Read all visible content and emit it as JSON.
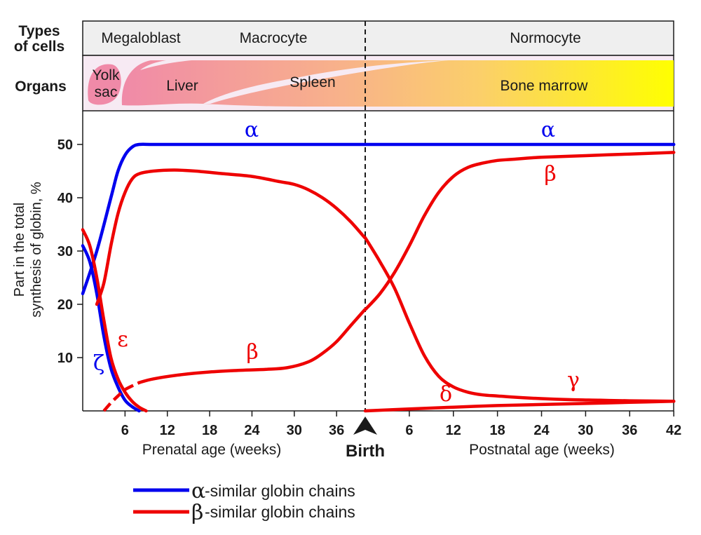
{
  "chart_data": {
    "type": "line",
    "row_labels": {
      "cell_types": "Types\nof cells",
      "organs": "Organs"
    },
    "cell_types": [
      "Megaloblast",
      "Macrocyte",
      "Normocyte"
    ],
    "organs": [
      "Yolk\nsac",
      "Liver",
      "Spleen",
      "Bone marrow"
    ],
    "ylabel": "Part in the total\nsynthesis of globin, %",
    "ylim": [
      0,
      55
    ],
    "yticks": [
      "10",
      "20",
      "30",
      "40",
      "50"
    ],
    "prenatal_ticks": [
      "6",
      "12",
      "18",
      "24",
      "30",
      "36"
    ],
    "postnatal_ticks": [
      "6",
      "12",
      "18",
      "24",
      "30",
      "36",
      "42"
    ],
    "prenatal_xlabel": "Prenatal age (weeks)",
    "postnatal_xlabel": "Postnatal age (weeks)",
    "birth_label": "Birth",
    "note": "x axis: prenatal weeks 0–40 (birth), then postnatal weeks 0–42",
    "series": [
      {
        "name": "α",
        "family": "alpha",
        "color": "#0000ee",
        "segments": [
          {
            "phase": "prenatal",
            "x": [
              0,
              2,
              4,
              5,
              6,
              7,
              8,
              10,
              15,
              20,
              30,
              40
            ],
            "y": [
              22,
              30,
              40,
              45,
              48,
              49.5,
              50,
              50,
              50,
              50,
              50,
              50
            ]
          },
          {
            "phase": "postnatal",
            "x": [
              0,
              10,
              20,
              30,
              42
            ],
            "y": [
              50,
              50,
              50,
              50,
              50
            ]
          }
        ]
      },
      {
        "name": "ζ",
        "family": "alpha",
        "color": "#0000ee",
        "segments": [
          {
            "phase": "prenatal",
            "x": [
              0,
              1,
              2,
              3,
              4,
              5,
              6,
              7,
              8
            ],
            "y": [
              31,
              28,
              22,
              14,
              8,
              4.5,
              2,
              0.8,
              0
            ]
          }
        ]
      },
      {
        "name": "ε",
        "family": "beta",
        "color": "#ee0000",
        "segments": [
          {
            "phase": "prenatal",
            "x": [
              0,
              1,
              2,
              3,
              4,
              5,
              6,
              7,
              8,
              9
            ],
            "y": [
              34,
              31,
              25,
              17,
              10,
              6,
              3.5,
              1.8,
              0.7,
              0
            ]
          }
        ]
      },
      {
        "name": "γ",
        "family": "beta",
        "color": "#ee0000",
        "segments": [
          {
            "phase": "prenatal",
            "x": [
              2,
              3,
              4,
              5,
              6,
              7,
              8,
              10,
              13,
              16,
              20,
              24,
              28,
              30,
              32,
              34,
              36,
              38,
              40
            ],
            "y": [
              20,
              24,
              31,
              37,
              41,
              43.5,
              44.5,
              45,
              45.2,
              45,
              44.5,
              44,
              43,
              42.5,
              41.5,
              40,
              38,
              35.5,
              32.5
            ]
          },
          {
            "phase": "postnatal",
            "x": [
              0,
              2,
              4,
              6,
              8,
              10,
              12,
              14,
              16,
              18,
              20,
              24,
              28,
              32,
              36,
              42
            ],
            "y": [
              32.5,
              28,
              23,
              16.5,
              10.5,
              6.5,
              4.5,
              3.5,
              3,
              2.8,
              2.6,
              2.3,
              2.1,
              2,
              1.9,
              1.8
            ]
          }
        ]
      },
      {
        "name": "β",
        "family": "beta",
        "color": "#ee0000",
        "dashed_until_x": 8,
        "segments": [
          {
            "phase": "prenatal",
            "x": [
              3,
              4,
              5,
              6,
              8,
              10,
              14,
              18,
              22,
              26,
              29,
              32,
              34,
              36,
              38,
              40
            ],
            "y": [
              0,
              1.5,
              2.8,
              4,
              5.3,
              6,
              6.8,
              7.3,
              7.6,
              7.8,
              8.1,
              9.2,
              10.8,
              13,
              16,
              19
            ]
          },
          {
            "phase": "postnatal",
            "x": [
              0,
              2,
              4,
              6,
              8,
              10,
              12,
              14,
              16,
              18,
              20,
              24,
              30,
              36,
              42
            ],
            "y": [
              19,
              22,
              26,
              31,
              36.5,
              41,
              44,
              45.7,
              46.5,
              47,
              47.2,
              47.6,
              47.9,
              48.2,
              48.5
            ]
          }
        ]
      },
      {
        "name": "δ",
        "family": "beta",
        "color": "#ee0000",
        "segments": [
          {
            "phase": "postnatal",
            "x": [
              0,
              6,
              12,
              18,
              24,
              30,
              36,
              42
            ],
            "y": [
              0,
              0.35,
              0.7,
              1,
              1.2,
              1.4,
              1.6,
              1.8
            ]
          }
        ]
      }
    ],
    "curve_labels": [
      {
        "text": "α",
        "color": "#0000ee"
      },
      {
        "text": "α",
        "color": "#0000ee"
      },
      {
        "text": "β",
        "color": "#ee0000"
      },
      {
        "text": "ε",
        "color": "#ee0000"
      },
      {
        "text": "ζ",
        "color": "#0000ee"
      },
      {
        "text": "β",
        "color": "#ee0000"
      },
      {
        "text": "δ",
        "color": "#ee0000"
      },
      {
        "text": "γ",
        "color": "#ee0000"
      }
    ],
    "legend": [
      {
        "symbol": "α",
        "text": "-similar globin chains",
        "color": "#0000ee"
      },
      {
        "symbol": "β",
        "text": "-similar globin chains",
        "color": "#ee0000"
      }
    ]
  }
}
